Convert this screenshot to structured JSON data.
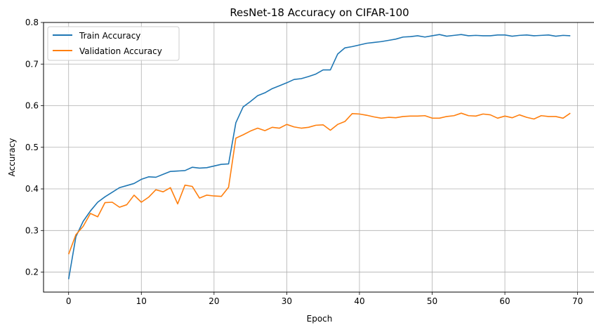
{
  "chart_data": {
    "type": "line",
    "title": "ResNet-18 Accuracy on CIFAR-100",
    "xlabel": "Epoch",
    "ylabel": "Accuracy",
    "xlim": [
      -3.45,
      72.45
    ],
    "ylim": [
      0.152,
      0.8
    ],
    "xticks": [
      0,
      10,
      20,
      30,
      40,
      50,
      60,
      70
    ],
    "yticks": [
      0.2,
      0.3,
      0.4,
      0.5,
      0.6,
      0.7,
      0.8
    ],
    "grid": true,
    "legend_position": "top-left",
    "x": [
      0,
      1,
      2,
      3,
      4,
      5,
      6,
      7,
      8,
      9,
      10,
      11,
      12,
      13,
      14,
      15,
      16,
      17,
      18,
      19,
      20,
      21,
      22,
      23,
      24,
      25,
      26,
      27,
      28,
      29,
      30,
      31,
      32,
      33,
      34,
      35,
      36,
      37,
      38,
      39,
      40,
      41,
      42,
      43,
      44,
      45,
      46,
      47,
      48,
      49,
      50,
      51,
      52,
      53,
      54,
      55,
      56,
      57,
      58,
      59,
      60,
      61,
      62,
      63,
      64,
      65,
      66,
      67,
      68,
      69
    ],
    "series": [
      {
        "name": "Train Accuracy",
        "color": "#1f77b4",
        "values": [
          0.183,
          0.285,
          0.322,
          0.347,
          0.368,
          0.381,
          0.392,
          0.403,
          0.408,
          0.413,
          0.423,
          0.429,
          0.428,
          0.435,
          0.442,
          0.443,
          0.444,
          0.452,
          0.45,
          0.451,
          0.455,
          0.459,
          0.46,
          0.559,
          0.597,
          0.61,
          0.624,
          0.631,
          0.641,
          0.648,
          0.655,
          0.663,
          0.665,
          0.67,
          0.676,
          0.686,
          0.686,
          0.724,
          0.739,
          0.742,
          0.746,
          0.75,
          0.752,
          0.754,
          0.757,
          0.76,
          0.765,
          0.766,
          0.768,
          0.765,
          0.768,
          0.771,
          0.767,
          0.769,
          0.771,
          0.768,
          0.769,
          0.768,
          0.768,
          0.77,
          0.77,
          0.767,
          0.769,
          0.77,
          0.768,
          0.769,
          0.77,
          0.767,
          0.769,
          0.768
        ]
      },
      {
        "name": "Validation Accuracy",
        "color": "#ff7f0e",
        "values": [
          0.243,
          0.29,
          0.31,
          0.341,
          0.333,
          0.367,
          0.368,
          0.356,
          0.362,
          0.385,
          0.368,
          0.38,
          0.398,
          0.393,
          0.403,
          0.364,
          0.409,
          0.406,
          0.378,
          0.385,
          0.383,
          0.382,
          0.404,
          0.522,
          0.53,
          0.539,
          0.546,
          0.54,
          0.548,
          0.546,
          0.555,
          0.549,
          0.546,
          0.548,
          0.553,
          0.554,
          0.541,
          0.555,
          0.562,
          0.581,
          0.58,
          0.577,
          0.573,
          0.57,
          0.572,
          0.571,
          0.574,
          0.575,
          0.575,
          0.576,
          0.57,
          0.57,
          0.574,
          0.576,
          0.582,
          0.576,
          0.575,
          0.58,
          0.578,
          0.57,
          0.575,
          0.571,
          0.578,
          0.572,
          0.568,
          0.576,
          0.574,
          0.574,
          0.57,
          0.582
        ]
      }
    ]
  }
}
